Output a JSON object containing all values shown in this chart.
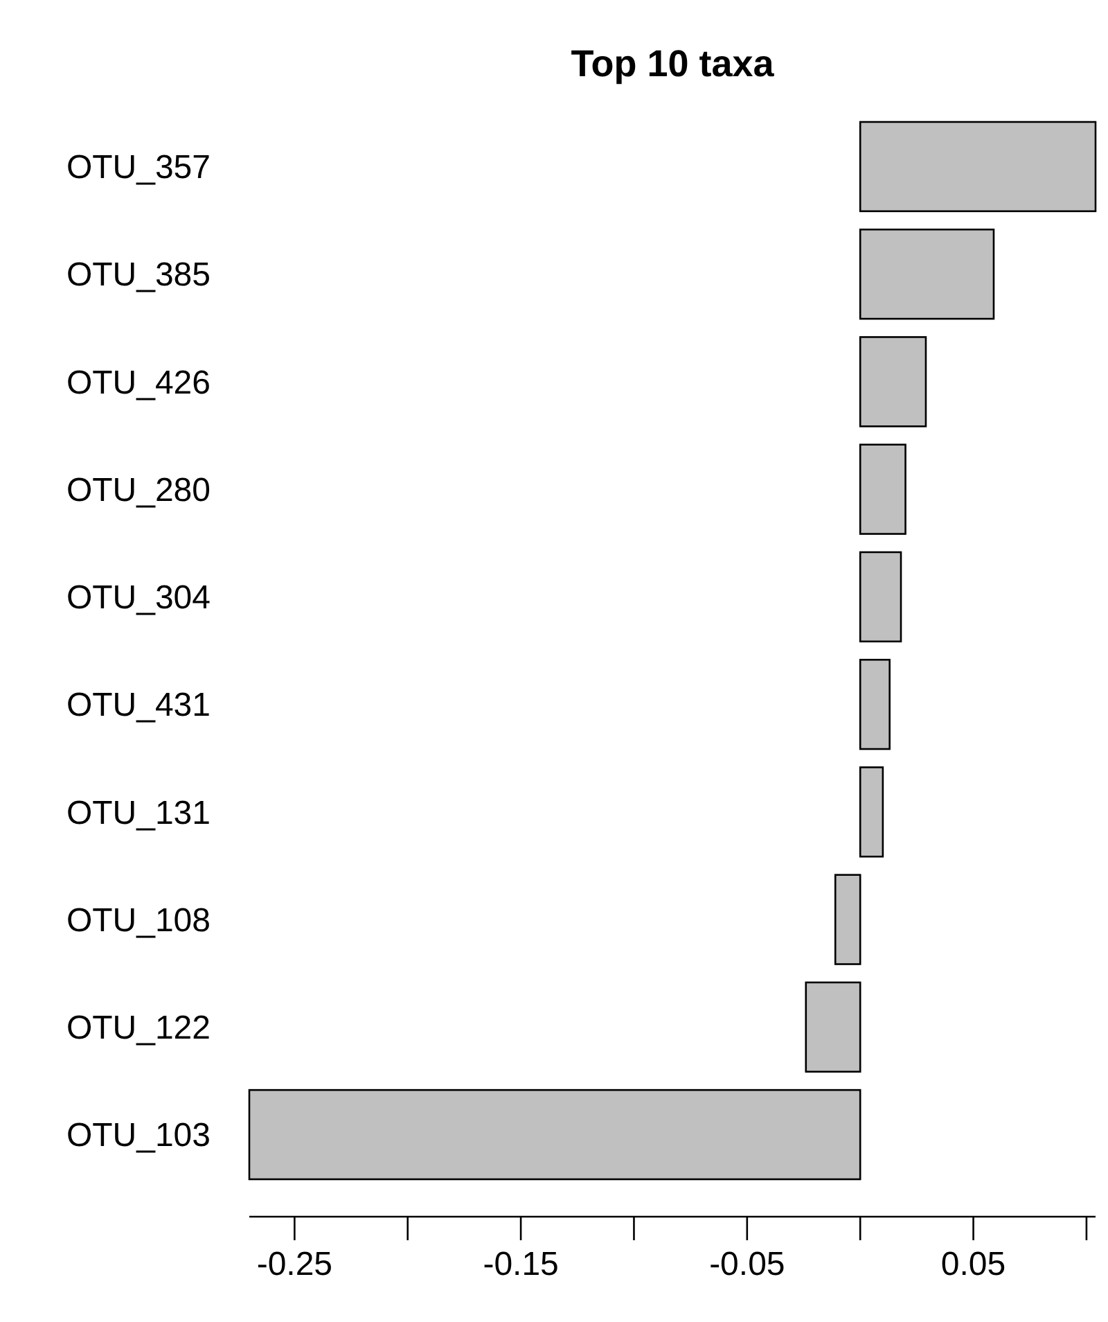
{
  "chart_data": {
    "type": "bar",
    "orientation": "horizontal",
    "title": "Top 10 taxa",
    "categories": [
      "OTU_357",
      "OTU_385",
      "OTU_426",
      "OTU_280",
      "OTU_304",
      "OTU_431",
      "OTU_131",
      "OTU_108",
      "OTU_122",
      "OTU_103"
    ],
    "values": [
      0.104,
      0.059,
      0.029,
      0.02,
      0.018,
      0.013,
      0.01,
      -0.011,
      -0.024,
      -0.27
    ],
    "color": "#c0c0c0",
    "xlim": [
      -0.27,
      0.104
    ],
    "xticks": [
      -0.25,
      -0.15,
      -0.05,
      0.05
    ],
    "grid": false
  }
}
